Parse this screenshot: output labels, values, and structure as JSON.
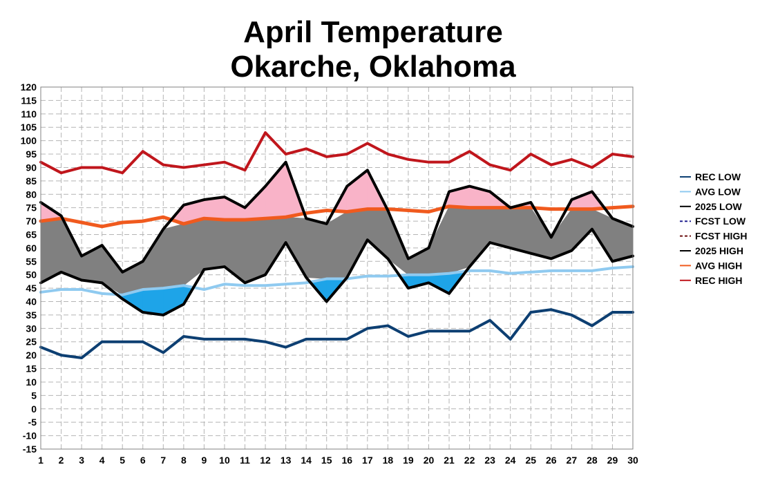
{
  "chart_data": {
    "type": "line",
    "title": "April Temperature",
    "subtitle": "Okarche, Oklahoma",
    "x": [
      1,
      2,
      3,
      4,
      5,
      6,
      7,
      8,
      9,
      10,
      11,
      12,
      13,
      14,
      15,
      16,
      17,
      18,
      19,
      20,
      21,
      22,
      23,
      24,
      25,
      26,
      27,
      28,
      29,
      30
    ],
    "ylim": [
      -15,
      120
    ],
    "ytick_step": 5,
    "grid": true,
    "legend_position": "right",
    "series": [
      {
        "name": "REC LOW",
        "color": "#0d3f72",
        "values": [
          23,
          20,
          19,
          25,
          25,
          25,
          21,
          27,
          26,
          26,
          26,
          25,
          23,
          26,
          26,
          26,
          30,
          31,
          27,
          29,
          29,
          29,
          33,
          26,
          36,
          37,
          35,
          31,
          36,
          36
        ]
      },
      {
        "name": "AVG LOW",
        "color": "#8fcaf0",
        "values": [
          43.5,
          44.5,
          44.5,
          43,
          42.5,
          44.5,
          45,
          46,
          44.5,
          46.5,
          46,
          46,
          46.5,
          47,
          48.5,
          48.5,
          49.5,
          49.5,
          50,
          50,
          50.5,
          51.5,
          51.5,
          50.5,
          51,
          51.5,
          51.5,
          51.5,
          52.5,
          53
        ]
      },
      {
        "name": "2025 LOW",
        "color": "#000000",
        "values": [
          47,
          51,
          48,
          47,
          41,
          36,
          35,
          39,
          52,
          53,
          47,
          50,
          62,
          49,
          40,
          49,
          63,
          56,
          45,
          47,
          43,
          53,
          62,
          null,
          null,
          null,
          null,
          null,
          null,
          null
        ]
      },
      {
        "name": "FCST LOW",
        "color": "#1f1f8f",
        "dashed": true,
        "values": [
          null,
          null,
          null,
          null,
          null,
          null,
          null,
          null,
          null,
          null,
          null,
          null,
          null,
          null,
          null,
          null,
          null,
          null,
          null,
          null,
          null,
          null,
          62,
          60,
          58,
          56,
          59,
          67,
          55,
          57
        ]
      },
      {
        "name": "FCST HIGH",
        "color": "#6b0f0f",
        "dashed": true,
        "values": [
          null,
          null,
          null,
          null,
          null,
          null,
          null,
          null,
          null,
          null,
          null,
          null,
          null,
          null,
          null,
          null,
          null,
          null,
          null,
          null,
          null,
          null,
          81,
          75,
          77,
          64,
          78,
          81,
          71,
          68
        ]
      },
      {
        "name": "2025 HIGH",
        "color": "#000000",
        "values": [
          77,
          72,
          57,
          61,
          51,
          55,
          67,
          76,
          78,
          79,
          75,
          83,
          92,
          71,
          69,
          83,
          89,
          74,
          56,
          60,
          81,
          83,
          81,
          null,
          null,
          null,
          null,
          null,
          null,
          null
        ]
      },
      {
        "name": "AVG HIGH",
        "color": "#f05a1e",
        "values": [
          70,
          71,
          69.5,
          68,
          69.5,
          70,
          71.5,
          69,
          71,
          70.5,
          70.5,
          71,
          71.5,
          73,
          74,
          73.5,
          74.5,
          74.5,
          74,
          73.5,
          75.5,
          75,
          75,
          75,
          75,
          74.5,
          74.5,
          74.5,
          75,
          75.5
        ]
      },
      {
        "name": "REC HIGH",
        "color": "#c0161c",
        "values": [
          92,
          88,
          90,
          90,
          88,
          96,
          91,
          90,
          91,
          92,
          89,
          103,
          95,
          97,
          94,
          95,
          99,
          95,
          93,
          92,
          92,
          96,
          91,
          89,
          95,
          91,
          93,
          90,
          95,
          94
        ]
      }
    ]
  }
}
